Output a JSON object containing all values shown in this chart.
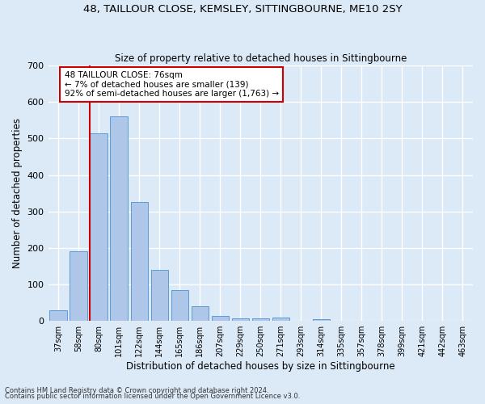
{
  "title_line1": "48, TAILLOUR CLOSE, KEMSLEY, SITTINGBOURNE, ME10 2SY",
  "title_line2": "Size of property relative to detached houses in Sittingbourne",
  "xlabel": "Distribution of detached houses by size in Sittingbourne",
  "ylabel": "Number of detached properties",
  "categories": [
    "37sqm",
    "58sqm",
    "80sqm",
    "101sqm",
    "122sqm",
    "144sqm",
    "165sqm",
    "186sqm",
    "207sqm",
    "229sqm",
    "250sqm",
    "271sqm",
    "293sqm",
    "314sqm",
    "335sqm",
    "357sqm",
    "378sqm",
    "399sqm",
    "421sqm",
    "442sqm",
    "463sqm"
  ],
  "values": [
    30,
    190,
    515,
    560,
    325,
    140,
    85,
    40,
    13,
    8,
    7,
    10,
    0,
    5,
    0,
    0,
    0,
    0,
    0,
    0,
    0
  ],
  "bar_color": "#aec6e8",
  "bar_edge_color": "#5b9bd5",
  "background_color": "#dce9f7",
  "grid_color": "#ffffff",
  "vline_color": "#cc0000",
  "annotation_text": "48 TAILLOUR CLOSE: 76sqm\n← 7% of detached houses are smaller (139)\n92% of semi-detached houses are larger (1,763) →",
  "annotation_box_color": "#ffffff",
  "annotation_box_edge": "#cc0000",
  "ylim": [
    0,
    700
  ],
  "yticks": [
    0,
    100,
    200,
    300,
    400,
    500,
    600,
    700
  ],
  "footnote1": "Contains HM Land Registry data © Crown copyright and database right 2024.",
  "footnote2": "Contains public sector information licensed under the Open Government Licence v3.0.",
  "fig_facecolor": "#dce9f7"
}
